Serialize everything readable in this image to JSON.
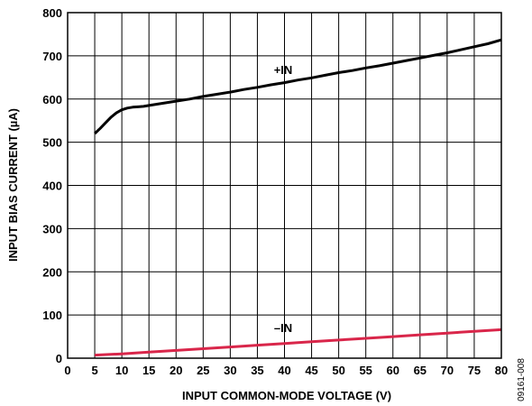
{
  "chart_data": {
    "type": "line",
    "xlabel": "INPUT COMMON-MODE VOLTAGE (V)",
    "ylabel": "INPUT BIAS CURRENT (µA)",
    "xlim": [
      0,
      80
    ],
    "ylim": [
      0,
      800
    ],
    "xticks": [
      0,
      5,
      10,
      15,
      20,
      25,
      30,
      35,
      40,
      45,
      50,
      55,
      60,
      65,
      70,
      75,
      80
    ],
    "yticks": [
      0,
      100,
      200,
      300,
      400,
      500,
      600,
      700,
      800
    ],
    "grid": true,
    "series": [
      {
        "name": "+IN",
        "color": "#000000",
        "x": [
          5,
          6,
          7,
          8,
          9,
          10,
          11,
          12,
          13,
          14,
          15,
          17.5,
          20,
          22.5,
          25,
          27.5,
          30,
          32.5,
          35,
          37.5,
          40,
          42.5,
          45,
          47.5,
          50,
          52.5,
          55,
          57.5,
          60,
          62.5,
          65,
          67.5,
          70,
          72.5,
          75,
          77.5,
          80
        ],
        "y": [
          520,
          532,
          545,
          558,
          568,
          575,
          579,
          581,
          582,
          583,
          585,
          590,
          595,
          600,
          606,
          611,
          616,
          622,
          627,
          633,
          638,
          644,
          649,
          655,
          661,
          666,
          672,
          677,
          683,
          689,
          695,
          701,
          707,
          714,
          721,
          728,
          737
        ]
      },
      {
        "name": "–IN",
        "color": "#d9264a",
        "x": [
          5,
          10,
          15,
          20,
          25,
          30,
          35,
          40,
          45,
          50,
          55,
          60,
          65,
          70,
          75,
          80
        ],
        "y": [
          7,
          10,
          14,
          18,
          22,
          26,
          30,
          34,
          38,
          42,
          46,
          50,
          54,
          58,
          62,
          66
        ]
      }
    ]
  },
  "figure_id": "09161-008"
}
